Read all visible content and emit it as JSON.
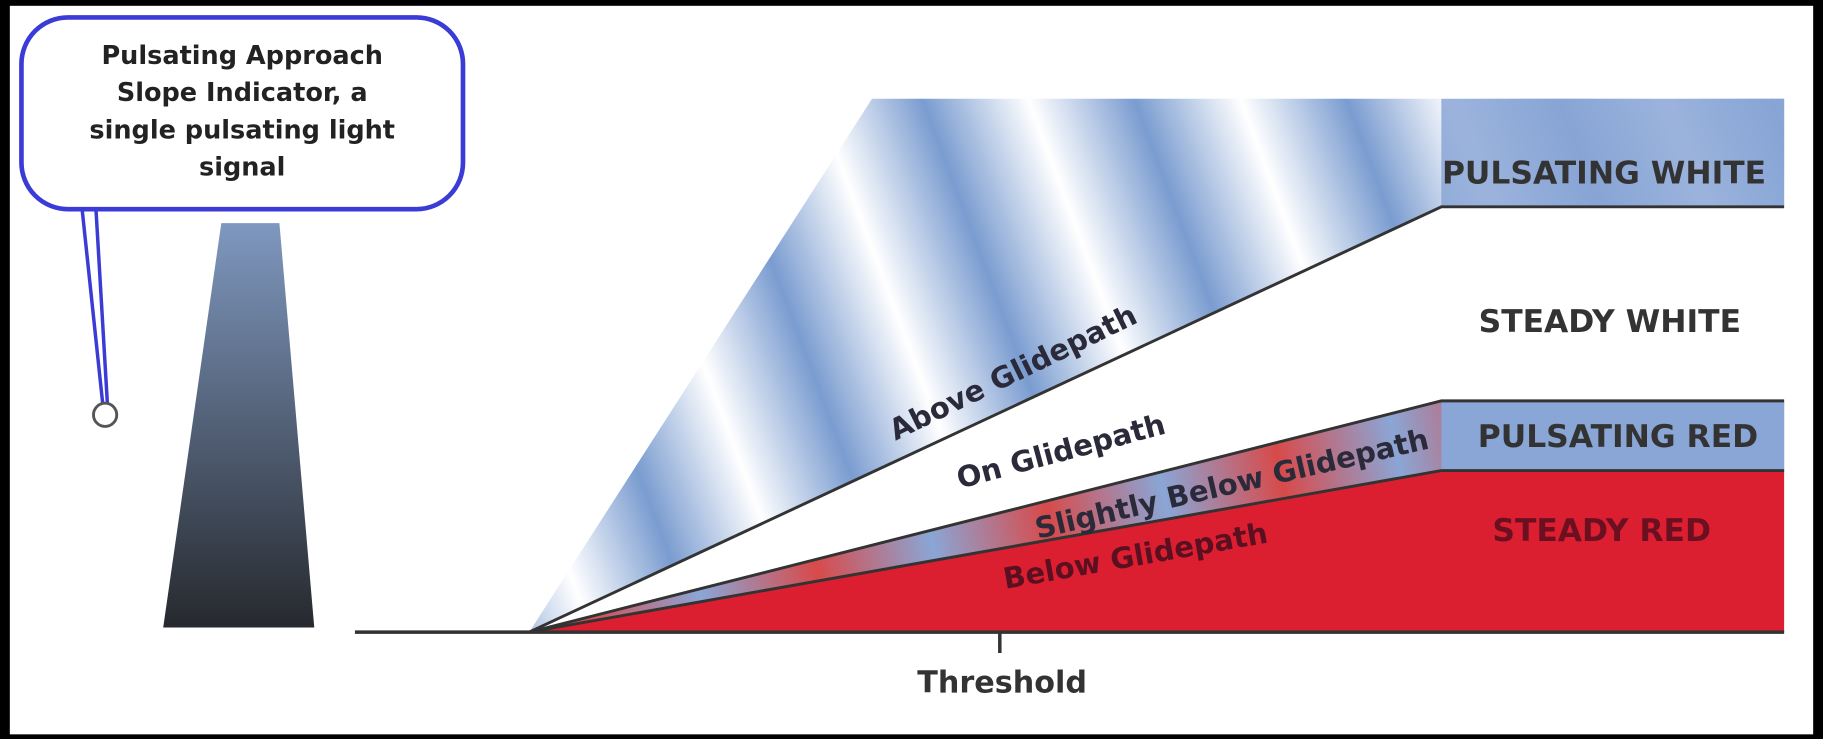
{
  "callout": {
    "lines": [
      "Pulsating Approach",
      "Slope Indicator, a",
      "single pulsating light",
      "signal"
    ]
  },
  "zones": {
    "above": "Above Glidepath",
    "on": "On Glidepath",
    "slightly_below": "Slightly Below Glidepath",
    "below": "Below Glidepath"
  },
  "signals": {
    "pulsating_white": "PULSATING WHITE",
    "steady_white": "STEADY WHITE",
    "pulsating_red": "PULSATING RED",
    "steady_red": "STEADY RED"
  },
  "threshold": "Threshold"
}
